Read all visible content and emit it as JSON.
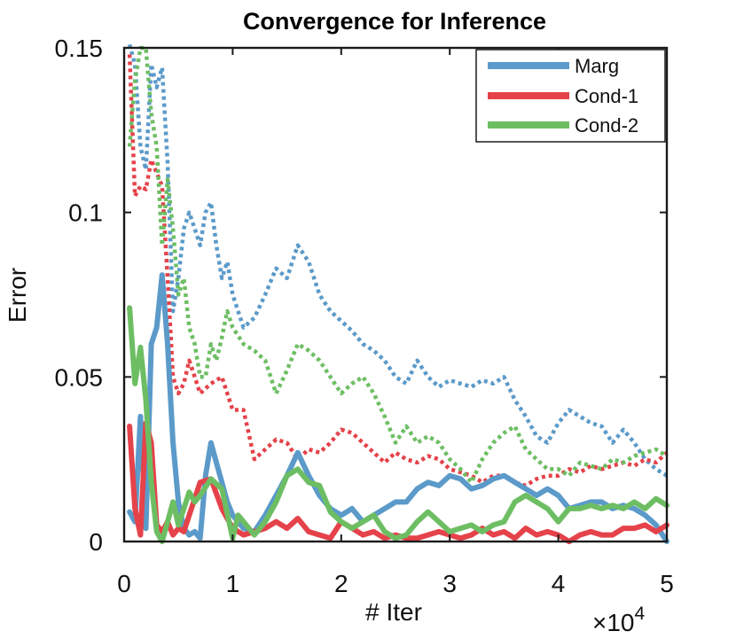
{
  "chart_data": {
    "type": "line",
    "title": "Convergence for Inference",
    "xlabel": "# Iter",
    "ylabel": "Error",
    "x_multiplier_base": "×10",
    "x_multiplier_exp": "4",
    "xlim": [
      0,
      5
    ],
    "ylim": [
      0,
      0.15
    ],
    "xticks": [
      0,
      1,
      2,
      3,
      4,
      5
    ],
    "xtick_labels": [
      "0",
      "1",
      "2",
      "3",
      "4",
      "5"
    ],
    "yticks": [
      0,
      0.05,
      0.1,
      0.15
    ],
    "ytick_labels": [
      "0",
      "0.05",
      "0.1",
      "0.15"
    ],
    "legend_position": "top-right",
    "legend": [
      "Marg",
      "Cond-1",
      "Cond-2"
    ],
    "colors": {
      "Marg": "#5b9ac9",
      "Cond-1": "#e5424a",
      "Cond-2": "#6dbe63"
    },
    "series": [
      {
        "name": "Marg",
        "style": "solid",
        "color": "#5b9ac9",
        "x": [
          0.05,
          0.1,
          0.15,
          0.2,
          0.25,
          0.3,
          0.35,
          0.4,
          0.45,
          0.5,
          0.55,
          0.6,
          0.65,
          0.7,
          0.75,
          0.8,
          0.85,
          0.9,
          0.95,
          1.0,
          1.05,
          1.1,
          1.2,
          1.3,
          1.4,
          1.5,
          1.6,
          1.7,
          1.8,
          1.9,
          2.0,
          2.1,
          2.2,
          2.3,
          2.4,
          2.5,
          2.6,
          2.7,
          2.8,
          2.9,
          3.0,
          3.1,
          3.2,
          3.3,
          3.4,
          3.5,
          3.6,
          3.7,
          3.8,
          3.9,
          4.0,
          4.1,
          4.2,
          4.3,
          4.4,
          4.5,
          4.6,
          4.7,
          4.8,
          4.9,
          5.0
        ],
        "values": [
          0.009,
          0.006,
          0.038,
          0.004,
          0.06,
          0.065,
          0.081,
          0.06,
          0.03,
          0.012,
          0.004,
          0.002,
          0.003,
          0.001,
          0.02,
          0.03,
          0.024,
          0.018,
          0.012,
          0.008,
          0.006,
          0.004,
          0.003,
          0.008,
          0.014,
          0.02,
          0.027,
          0.02,
          0.014,
          0.01,
          0.008,
          0.01,
          0.006,
          0.008,
          0.01,
          0.012,
          0.012,
          0.016,
          0.018,
          0.017,
          0.02,
          0.019,
          0.016,
          0.017,
          0.019,
          0.02,
          0.018,
          0.016,
          0.014,
          0.016,
          0.014,
          0.01,
          0.011,
          0.012,
          0.012,
          0.01,
          0.011,
          0.01,
          0.008,
          0.005,
          0.0
        ]
      },
      {
        "name": "Cond-1",
        "style": "solid",
        "color": "#e5424a",
        "x": [
          0.05,
          0.1,
          0.15,
          0.2,
          0.25,
          0.3,
          0.35,
          0.4,
          0.45,
          0.5,
          0.55,
          0.6,
          0.7,
          0.8,
          0.9,
          1.0,
          1.1,
          1.2,
          1.3,
          1.4,
          1.5,
          1.6,
          1.7,
          1.8,
          1.9,
          2.0,
          2.1,
          2.2,
          2.3,
          2.4,
          2.5,
          2.6,
          2.7,
          2.8,
          2.9,
          3.0,
          3.1,
          3.2,
          3.3,
          3.4,
          3.5,
          3.6,
          3.7,
          3.8,
          3.9,
          4.0,
          4.1,
          4.2,
          4.3,
          4.4,
          4.5,
          4.6,
          4.7,
          4.8,
          4.9,
          5.0
        ],
        "values": [
          0.035,
          0.01,
          0.002,
          0.036,
          0.03,
          0.005,
          0.003,
          0.006,
          0.002,
          0.004,
          0.003,
          0.008,
          0.018,
          0.019,
          0.01,
          0.004,
          0.002,
          0.003,
          0.004,
          0.006,
          0.004,
          0.007,
          0.003,
          0.002,
          0.001,
          0.006,
          0.004,
          0.002,
          0.003,
          0.001,
          0.002,
          0.001,
          0.001,
          0.002,
          0.003,
          0.002,
          0.001,
          0.002,
          0.004,
          0.002,
          0.003,
          0.001,
          0.004,
          0.002,
          0.003,
          0.002,
          0.0,
          0.002,
          0.003,
          0.002,
          0.002,
          0.004,
          0.004,
          0.005,
          0.003,
          0.005
        ]
      },
      {
        "name": "Cond-2",
        "style": "solid",
        "color": "#6dbe63",
        "x": [
          0.05,
          0.1,
          0.15,
          0.2,
          0.25,
          0.3,
          0.35,
          0.4,
          0.45,
          0.5,
          0.55,
          0.6,
          0.65,
          0.7,
          0.8,
          0.9,
          1.0,
          1.05,
          1.1,
          1.2,
          1.3,
          1.4,
          1.5,
          1.6,
          1.7,
          1.8,
          1.9,
          2.0,
          2.1,
          2.2,
          2.3,
          2.4,
          2.5,
          2.6,
          2.7,
          2.8,
          2.9,
          3.0,
          3.1,
          3.2,
          3.3,
          3.4,
          3.5,
          3.6,
          3.7,
          3.8,
          3.9,
          4.0,
          4.1,
          4.2,
          4.3,
          4.4,
          4.5,
          4.6,
          4.7,
          4.8,
          4.9,
          5.0
        ],
        "values": [
          0.071,
          0.048,
          0.059,
          0.043,
          0.018,
          0.003,
          0.0,
          0.006,
          0.012,
          0.005,
          0.01,
          0.015,
          0.012,
          0.014,
          0.019,
          0.016,
          0.001,
          0.008,
          0.006,
          0.002,
          0.006,
          0.012,
          0.02,
          0.022,
          0.018,
          0.017,
          0.009,
          0.006,
          0.004,
          0.006,
          0.008,
          0.003,
          0.001,
          0.002,
          0.006,
          0.009,
          0.006,
          0.003,
          0.004,
          0.005,
          0.003,
          0.005,
          0.006,
          0.012,
          0.014,
          0.012,
          0.01,
          0.006,
          0.01,
          0.01,
          0.011,
          0.01,
          0.011,
          0.01,
          0.012,
          0.01,
          0.013,
          0.011
        ]
      },
      {
        "name": "Marg (dotted)",
        "style": "dotted",
        "color": "#5b9ac9",
        "x": [
          0.05,
          0.1,
          0.15,
          0.2,
          0.25,
          0.3,
          0.35,
          0.4,
          0.45,
          0.5,
          0.55,
          0.6,
          0.65,
          0.7,
          0.75,
          0.8,
          0.85,
          0.9,
          0.95,
          1.0,
          1.1,
          1.2,
          1.3,
          1.4,
          1.5,
          1.6,
          1.7,
          1.8,
          1.9,
          2.0,
          2.1,
          2.2,
          2.3,
          2.4,
          2.5,
          2.6,
          2.7,
          2.8,
          2.9,
          3.0,
          3.1,
          3.2,
          3.3,
          3.4,
          3.5,
          3.6,
          3.7,
          3.8,
          3.9,
          4.0,
          4.1,
          4.2,
          4.3,
          4.4,
          4.5,
          4.6,
          4.7,
          4.8,
          4.9,
          5.0
        ],
        "values": [
          0.151,
          0.145,
          0.12,
          0.113,
          0.145,
          0.138,
          0.144,
          0.115,
          0.07,
          0.08,
          0.095,
          0.1,
          0.095,
          0.09,
          0.1,
          0.103,
          0.09,
          0.08,
          0.085,
          0.075,
          0.065,
          0.068,
          0.075,
          0.083,
          0.08,
          0.09,
          0.085,
          0.075,
          0.07,
          0.067,
          0.064,
          0.06,
          0.058,
          0.055,
          0.05,
          0.048,
          0.055,
          0.05,
          0.047,
          0.049,
          0.048,
          0.047,
          0.049,
          0.048,
          0.05,
          0.043,
          0.038,
          0.032,
          0.03,
          0.036,
          0.04,
          0.038,
          0.036,
          0.035,
          0.03,
          0.034,
          0.03,
          0.025,
          0.022,
          0.02
        ]
      },
      {
        "name": "Cond-1 (dotted)",
        "style": "dotted",
        "color": "#e5424a",
        "x": [
          0.05,
          0.1,
          0.15,
          0.2,
          0.25,
          0.3,
          0.35,
          0.4,
          0.45,
          0.5,
          0.55,
          0.6,
          0.65,
          0.7,
          0.8,
          0.9,
          1.0,
          1.1,
          1.2,
          1.3,
          1.4,
          1.5,
          1.6,
          1.7,
          1.8,
          1.9,
          2.0,
          2.1,
          2.2,
          2.3,
          2.4,
          2.5,
          2.6,
          2.7,
          2.8,
          2.9,
          3.0,
          3.1,
          3.2,
          3.3,
          3.4,
          3.5,
          3.6,
          3.7,
          3.8,
          3.9,
          4.0,
          4.1,
          4.2,
          4.3,
          4.4,
          4.5,
          4.6,
          4.7,
          4.8,
          4.9,
          5.0
        ],
        "values": [
          0.148,
          0.105,
          0.108,
          0.107,
          0.116,
          0.112,
          0.108,
          0.08,
          0.05,
          0.045,
          0.048,
          0.055,
          0.05,
          0.045,
          0.048,
          0.05,
          0.04,
          0.04,
          0.025,
          0.028,
          0.031,
          0.03,
          0.025,
          0.028,
          0.027,
          0.03,
          0.034,
          0.033,
          0.03,
          0.027,
          0.024,
          0.027,
          0.025,
          0.024,
          0.026,
          0.025,
          0.022,
          0.021,
          0.02,
          0.018,
          0.02,
          0.02,
          0.018,
          0.017,
          0.019,
          0.02,
          0.02,
          0.022,
          0.021,
          0.023,
          0.022,
          0.023,
          0.024,
          0.023,
          0.025,
          0.024,
          0.027
        ]
      },
      {
        "name": "Cond-2 (dotted)",
        "style": "dotted",
        "color": "#6dbe63",
        "x": [
          0.05,
          0.1,
          0.15,
          0.2,
          0.25,
          0.3,
          0.35,
          0.4,
          0.45,
          0.5,
          0.55,
          0.6,
          0.65,
          0.7,
          0.75,
          0.8,
          0.85,
          0.9,
          0.95,
          1.0,
          1.1,
          1.2,
          1.3,
          1.4,
          1.5,
          1.6,
          1.7,
          1.8,
          1.9,
          2.0,
          2.1,
          2.2,
          2.3,
          2.4,
          2.5,
          2.6,
          2.7,
          2.8,
          2.9,
          3.0,
          3.1,
          3.2,
          3.3,
          3.4,
          3.5,
          3.6,
          3.7,
          3.8,
          3.9,
          4.0,
          4.1,
          4.2,
          4.3,
          4.4,
          4.5,
          4.6,
          4.7,
          4.8,
          4.9,
          5.0
        ],
        "values": [
          0.12,
          0.14,
          0.15,
          0.15,
          0.13,
          0.12,
          0.09,
          0.11,
          0.095,
          0.075,
          0.08,
          0.065,
          0.06,
          0.05,
          0.05,
          0.06,
          0.055,
          0.062,
          0.07,
          0.065,
          0.06,
          0.058,
          0.055,
          0.045,
          0.052,
          0.06,
          0.058,
          0.055,
          0.05,
          0.045,
          0.048,
          0.05,
          0.045,
          0.038,
          0.03,
          0.035,
          0.03,
          0.032,
          0.03,
          0.025,
          0.022,
          0.018,
          0.025,
          0.03,
          0.033,
          0.035,
          0.028,
          0.025,
          0.022,
          0.022,
          0.02,
          0.024,
          0.023,
          0.022,
          0.025,
          0.024,
          0.026,
          0.027,
          0.028,
          0.026
        ]
      }
    ]
  }
}
